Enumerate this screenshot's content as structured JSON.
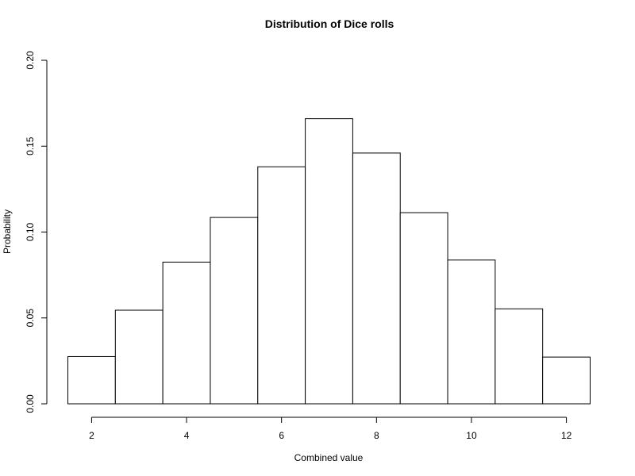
{
  "chart_data": {
    "type": "bar",
    "title": "Distribution of Dice rolls",
    "xlabel": "Combined value",
    "ylabel": "Probability",
    "categories": [
      "2",
      "3",
      "4",
      "5",
      "6",
      "7",
      "8",
      "9",
      "10",
      "11",
      "12"
    ],
    "bin_centers": [
      2,
      3,
      4,
      5,
      6,
      7,
      8,
      9,
      10,
      11,
      12
    ],
    "values": [
      0.0275,
      0.0545,
      0.0825,
      0.1085,
      0.138,
      0.166,
      0.146,
      0.1113,
      0.0837,
      0.0553,
      0.0272
    ],
    "xlim": [
      1.5,
      12.5
    ],
    "ylim": [
      0,
      0.2
    ],
    "x_ticks": [
      2,
      4,
      6,
      8,
      10,
      12
    ],
    "x_tick_labels": [
      "2",
      "4",
      "6",
      "8",
      "10",
      "12"
    ],
    "y_ticks": [
      0,
      0.05,
      0.1,
      0.15,
      0.2
    ],
    "y_tick_labels": [
      "0.00",
      "0.05",
      "0.10",
      "0.15",
      "0.20"
    ],
    "grid": false,
    "legend": "none",
    "bar_fill": "#ffffff",
    "bar_stroke": "#000000"
  }
}
